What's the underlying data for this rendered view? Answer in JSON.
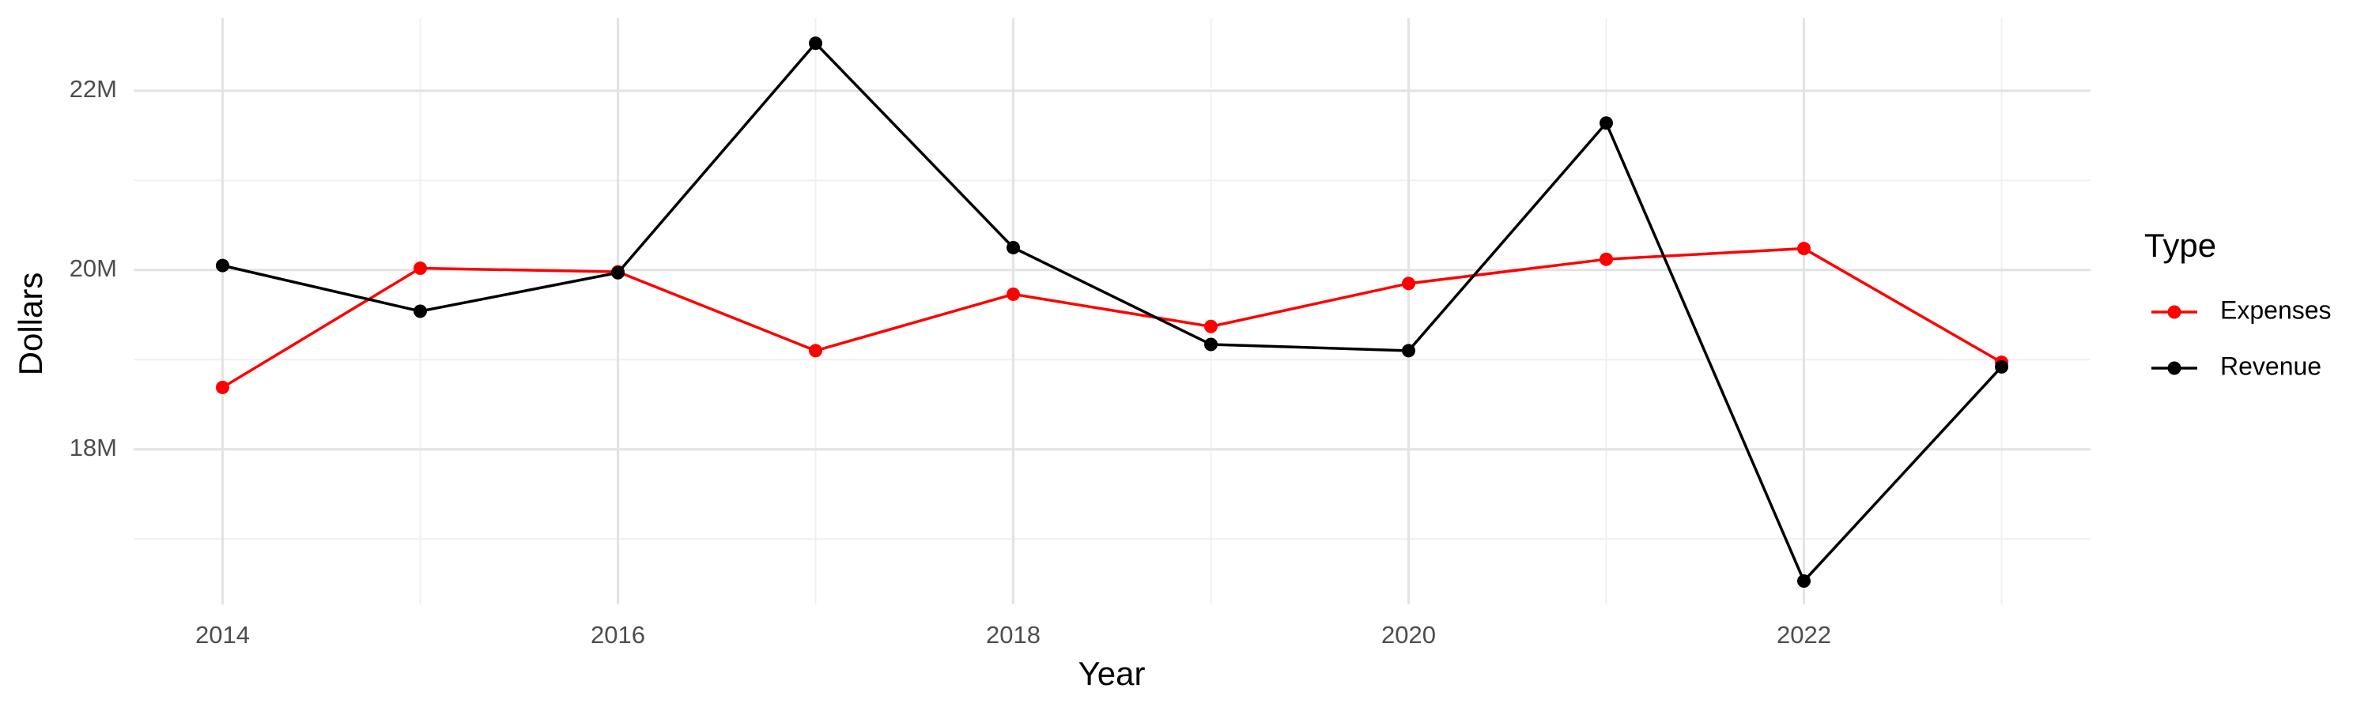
{
  "chart_data": {
    "type": "line",
    "x_label": "Year",
    "y_label": "Dollars",
    "legend_title": "Type",
    "x": [
      2014,
      2015,
      2016,
      2017,
      2018,
      2019,
      2020,
      2021,
      2022,
      2023
    ],
    "series": [
      {
        "name": "Expenses",
        "color": "#ff0000",
        "values": [
          18690000,
          20020000,
          19980000,
          19100000,
          19730000,
          19370000,
          19850000,
          20120000,
          20240000,
          18970000
        ]
      },
      {
        "name": "Revenue",
        "color": "#000000",
        "values": [
          20050000,
          19540000,
          19970000,
          22530000,
          20250000,
          19170000,
          19100000,
          21640000,
          16530000,
          18920000
        ]
      }
    ],
    "xlim": [
      2013.55,
      2023.45
    ],
    "ylim": [
      16270000,
      22810000
    ],
    "xticks": [
      2014,
      2016,
      2018,
      2020,
      2022
    ],
    "yticks": [
      {
        "value": 18000000,
        "label": "18M"
      },
      {
        "value": 20000000,
        "label": "20M"
      },
      {
        "value": 22000000,
        "label": "22M"
      }
    ],
    "grid": true,
    "legend": "right"
  }
}
